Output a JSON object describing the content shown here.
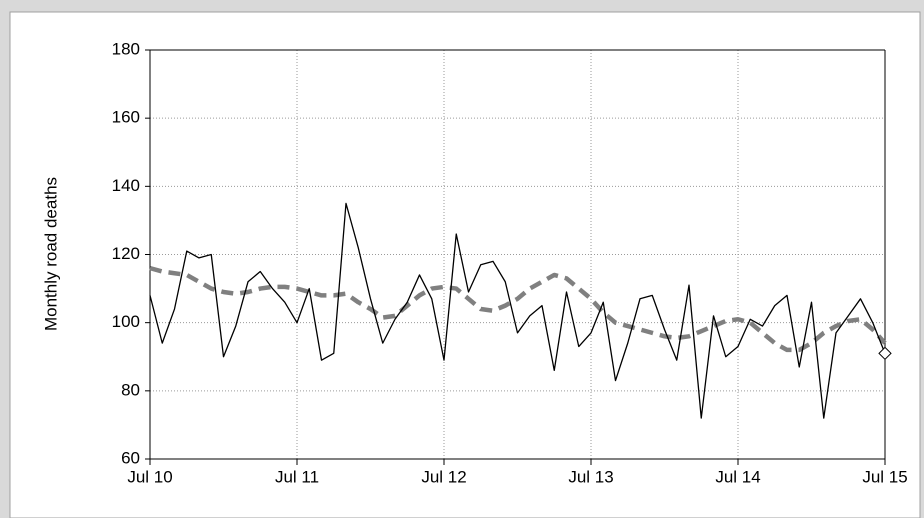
{
  "chart_data": {
    "type": "line",
    "y_label": "Monthly road deaths",
    "categories": [
      "Jul 10",
      null,
      null,
      null,
      null,
      null,
      null,
      null,
      null,
      null,
      null,
      null,
      "Jul 11",
      null,
      null,
      null,
      null,
      null,
      null,
      null,
      null,
      null,
      null,
      null,
      "Jul 12",
      null,
      null,
      null,
      null,
      null,
      null,
      null,
      null,
      null,
      null,
      null,
      "Jul 13",
      null,
      null,
      null,
      null,
      null,
      null,
      null,
      null,
      null,
      null,
      null,
      "Jul 14",
      null,
      null,
      null,
      null,
      null,
      null,
      null,
      null,
      null,
      null,
      null,
      "Jul 15"
    ],
    "series": [
      {
        "color": "#000000",
        "dashed": false,
        "end_marker": "diamond",
        "values": [
          108,
          94,
          104,
          121,
          119,
          120,
          90,
          99,
          112,
          115,
          110,
          106,
          100,
          110,
          89,
          91,
          135,
          122,
          107,
          94,
          101,
          106,
          114,
          107,
          89,
          126,
          109,
          117,
          118,
          112,
          97,
          102,
          105,
          86,
          109,
          93,
          97,
          106,
          83,
          94,
          107,
          108,
          98,
          89,
          111,
          72,
          102,
          90,
          93,
          101,
          99,
          105,
          108,
          87,
          106,
          72,
          97,
          102,
          107,
          100,
          91
        ]
      },
      {
        "color": "#808080",
        "dashed": true,
        "values": [
          116,
          115,
          114.5,
          114,
          112,
          110,
          109,
          108.5,
          109,
          110,
          110.5,
          110.5,
          110,
          109,
          108,
          108,
          108.5,
          106,
          104,
          101.5,
          102,
          105,
          108,
          110,
          110.5,
          110,
          107,
          104,
          103.5,
          105,
          107,
          110,
          112,
          114,
          113,
          110,
          107,
          103,
          100,
          99,
          98,
          97,
          96,
          95.5,
          96,
          97.5,
          99,
          100.5,
          101,
          100,
          97,
          94,
          92,
          92,
          94,
          97,
          99,
          100.5,
          101,
          98,
          94
        ]
      }
    ],
    "ylim": [
      60,
      180
    ],
    "yticks": [
      60,
      80,
      100,
      120,
      140,
      160,
      180
    ],
    "grid": true
  }
}
